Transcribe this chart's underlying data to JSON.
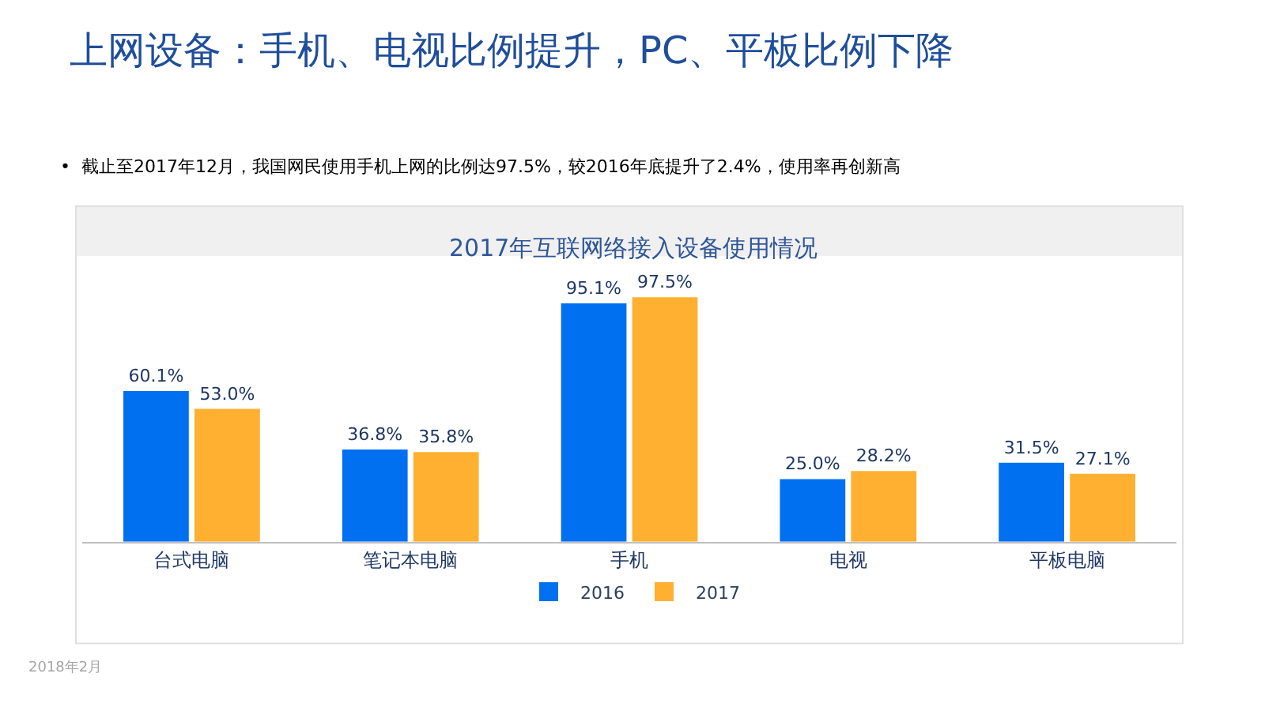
{
  "chart_data": {
    "type": "bar",
    "title": "上网设备：手机、电视比例提升，PC、平板比例下降",
    "subtitle": "•  截止至2017年12月，我国网民使用手机上网的比例达97.5%，较2016年底提升了2.4%，使用率再创新高",
    "annotations": [
      "2017年互联网络接入设备使用情况",
      "2018年2月"
    ],
    "categories": [
      "台式电脑",
      "笔记本电脑",
      "手机",
      "电视",
      "平板电脑"
    ],
    "series": [
      {
        "name": "2016",
        "color": "#0070f0",
        "values": [
          60.1,
          36.8,
          95.1,
          25.0,
          31.5
        ],
        "value_labels": [
          "60.1%",
          "36.8%",
          "95.1%",
          "25.0%",
          "31.5%"
        ]
      },
      {
        "name": "2017",
        "color": "#ffb030",
        "values": [
          53.0,
          35.8,
          97.5,
          28.2,
          27.1
        ],
        "value_labels": [
          "53.0%",
          "35.8%",
          "97.5%",
          "28.2%",
          "27.1%"
        ]
      }
    ],
    "legend": "bottom"
  }
}
